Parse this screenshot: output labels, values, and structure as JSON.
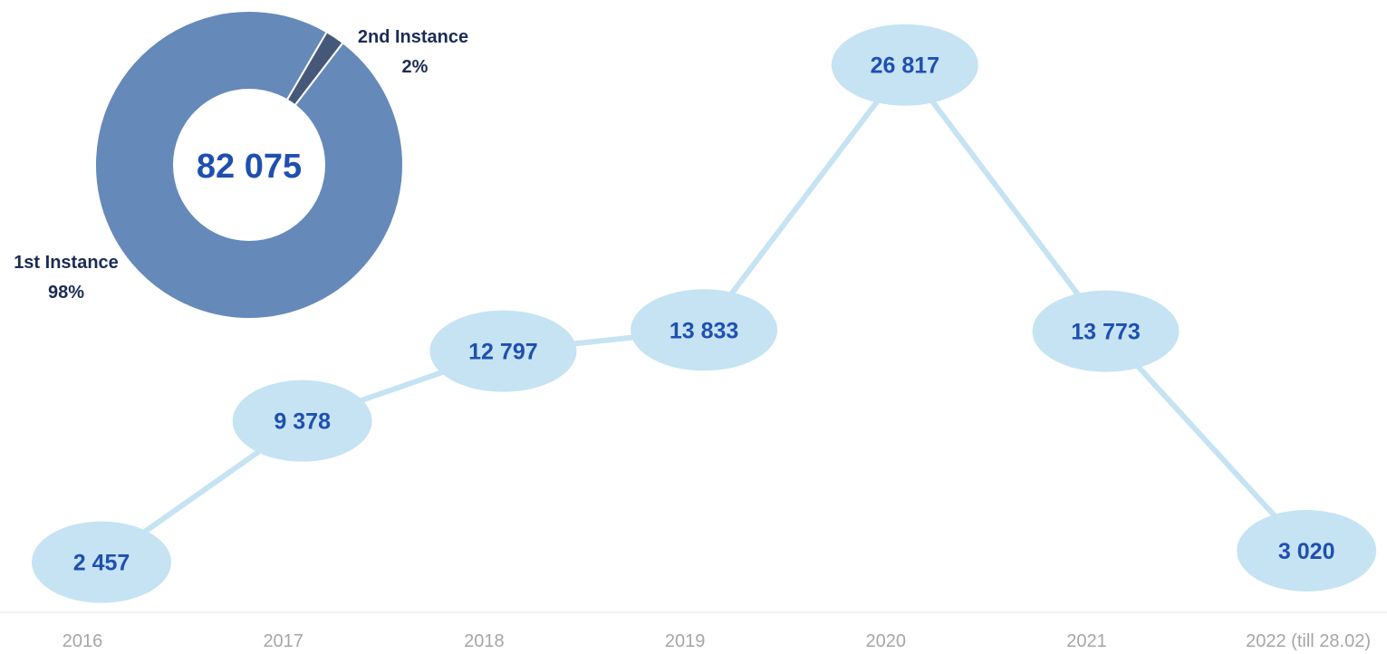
{
  "chart_data": [
    {
      "type": "line",
      "categories": [
        "2016",
        "2017",
        "2018",
        "2019",
        "2020",
        "2021",
        "2022 (till 28.02)"
      ],
      "values": [
        2457,
        9378,
        12797,
        13833,
        26817,
        13773,
        3020
      ],
      "value_labels": [
        "2 457",
        "9 378",
        "12 797",
        "13 833",
        "26 817",
        "13 773",
        "3 020"
      ],
      "ylim": [
        0,
        30000
      ],
      "grid": false,
      "legend": "none",
      "colors": {
        "line": "#c5e3f3",
        "marker": "#c5e3f3",
        "label": "#1f4fb0",
        "axis_text": "#a6a6a6",
        "axis_line": "#e6e6e6"
      }
    },
    {
      "type": "pie",
      "donut": true,
      "total_label": "82 075",
      "slices": [
        {
          "name": "1st Instance",
          "percent_label": "98%",
          "value": 98,
          "color": "#6589b9"
        },
        {
          "name": "2nd Instance",
          "percent_label": "2%",
          "value": 2,
          "color": "#46587a"
        }
      ],
      "colors": {
        "center_text": "#1f4fb0",
        "slice_label": "#1c2c55",
        "slice_border": "#ffffff"
      }
    }
  ]
}
